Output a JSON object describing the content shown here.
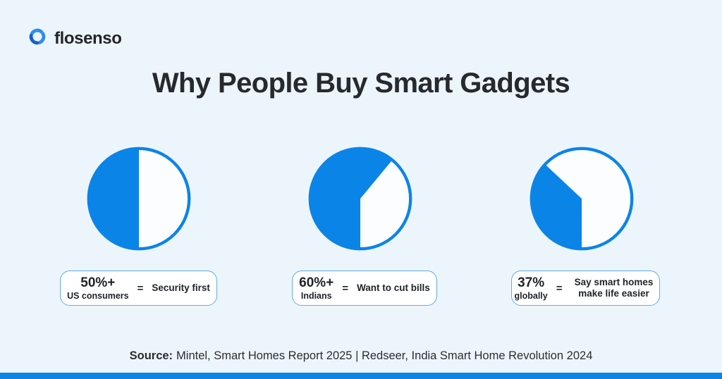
{
  "brand": {
    "name": "flosenso"
  },
  "title": "Why People Buy Smart Gadgets",
  "colors": {
    "accent_blue": "#0B84E8",
    "background": "#EDF5FC",
    "pie_face": "#FBFDFF",
    "box_border": "#5FABF1",
    "text_dark": "#26292E",
    "logo_blue_bright": "#2F8DEE",
    "logo_blue_dark": "#1560CF"
  },
  "chart_data": {
    "type": "pie",
    "title": "Why People Buy Smart Gadgets",
    "legend_position": "none",
    "charts": [
      {
        "fill_percent": 50,
        "stat": "50%+",
        "cohort": "US consumers",
        "equals": "=",
        "description": "Security first",
        "slices": [
          {
            "label": "Security first",
            "value": 50,
            "color": "#0B84E8"
          },
          {
            "label": "Remainder",
            "value": 50,
            "color": "#FBFDFF"
          }
        ]
      },
      {
        "fill_percent": 61,
        "stat": "60%+",
        "cohort": "Indians",
        "equals": "=",
        "description": "Want to cut bills",
        "slices": [
          {
            "label": "Want to cut bills",
            "value": 61,
            "color": "#0B84E8"
          },
          {
            "label": "Remainder",
            "value": 39,
            "color": "#FBFDFF"
          }
        ]
      },
      {
        "fill_percent": 37,
        "stat": "37%",
        "cohort": "globally",
        "equals": "=",
        "description": "Say smart homes make life easier",
        "slices": [
          {
            "label": "Say smart homes make life easier",
            "value": 37,
            "color": "#0B84E8"
          },
          {
            "label": "Remainder",
            "value": 63,
            "color": "#FBFDFF"
          }
        ]
      }
    ]
  },
  "source": {
    "label": "Source:",
    "text": "Mintel, Smart Homes Report 2025 | Redseer, India Smart Home Revolution 2024"
  }
}
